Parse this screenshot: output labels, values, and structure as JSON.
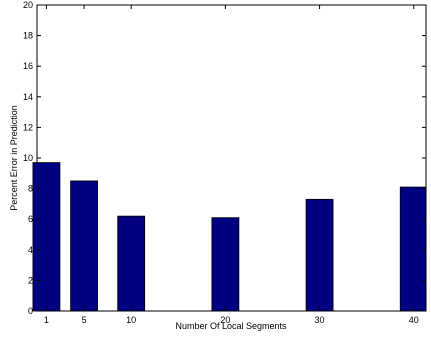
{
  "chart_data": {
    "type": "bar",
    "title": "",
    "xlabel": "Number Of Local Segments",
    "ylabel": "Percent Error in Prediction",
    "x": [
      1,
      5,
      10,
      20,
      30,
      40
    ],
    "values": [
      9.7,
      8.5,
      6.2,
      6.1,
      7.3,
      8.1
    ],
    "xlim": [
      0,
      40
    ],
    "ylim": [
      0,
      20
    ],
    "yticks": [
      0,
      2,
      4,
      6,
      8,
      10,
      12,
      14,
      16,
      18,
      20
    ],
    "xticks": [
      "1",
      "5",
      "10",
      "20",
      "30",
      "40"
    ],
    "grid": false,
    "colors": {
      "bar": "#000080",
      "edge": "#000000"
    }
  }
}
